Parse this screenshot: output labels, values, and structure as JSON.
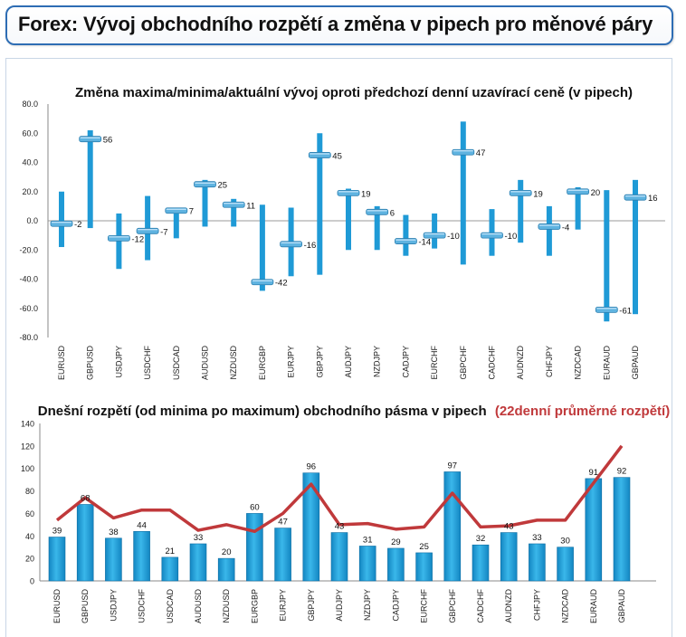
{
  "page_title": "Forex: Vývoj obchodního rozpětí a změna v pipech pro měnové páry",
  "chart_data": [
    {
      "type": "bar",
      "title": "Změna maxima/minima/aktuální vývoj oproti předchozí denní uzavírací ceně (v pipech)",
      "categories": [
        "EURUSD",
        "GBPUSD",
        "USDJPY",
        "USDCHF",
        "USDCAD",
        "AUDUSD",
        "NZDUSD",
        "EURGBP",
        "EURJPY",
        "GBPJPY",
        "AUDJPY",
        "NZDJPY",
        "CADJPY",
        "EURCHF",
        "GBPCHF",
        "CADCHF",
        "AUDNZD",
        "CHFJPY",
        "NZDCAD",
        "EURAUD",
        "GBPAUD"
      ],
      "series": [
        {
          "name": "max",
          "values": [
            20,
            62,
            5,
            17,
            8,
            28,
            15,
            11,
            9,
            60,
            22,
            10,
            4,
            5,
            68,
            8,
            28,
            10,
            23,
            21,
            28
          ]
        },
        {
          "name": "min",
          "values": [
            -18,
            -5,
            -33,
            -27,
            -12,
            -4,
            -4,
            -48,
            -38,
            -37,
            -20,
            -20,
            -24,
            -19,
            -30,
            -24,
            -15,
            -24,
            -6,
            -69,
            -64
          ]
        },
        {
          "name": "aktuální",
          "values": [
            -2,
            56,
            -12,
            -7,
            7,
            25,
            11,
            -42,
            -16,
            45,
            19,
            6,
            -14,
            -10,
            47,
            -10,
            19,
            -4,
            20,
            -61,
            16
          ]
        }
      ],
      "ylim": [
        -80,
        80
      ],
      "yticks": [
        "80.0",
        "60.0",
        "40.0",
        "20.0",
        "0.0",
        "-20.0",
        "-40.0",
        "-60.0",
        "-80.0"
      ],
      "data_labels": [
        "-2",
        "56",
        "-12",
        "-7",
        "7",
        "25",
        "11",
        "-42",
        "-16",
        "45",
        "19",
        "6",
        "-14",
        "-10",
        "47",
        "-10",
        "19",
        "-4",
        "20",
        "-61",
        "16"
      ],
      "colors": {
        "bar": "#1f9ad6",
        "marker": "#5fb3e0"
      }
    },
    {
      "type": "bar",
      "title": "Dnešní rozpětí (od minima po maximum) obchodního pásma v pipech",
      "title_secondary": "(22denní průměrné rozpětí)",
      "categories": [
        "EURUSD",
        "GBPUSD",
        "USDJPY",
        "USDCHF",
        "USDCAD",
        "AUDUSD",
        "NZDUSD",
        "EURGBP",
        "EURJPY",
        "GBPJPY",
        "AUDJPY",
        "NZDJPY",
        "CADJPY",
        "EURCHF",
        "GBPCHF",
        "CADCHF",
        "AUDNZD",
        "CHFJPY",
        "NZDCAD",
        "EURAUD",
        "GBPAUD"
      ],
      "series": [
        {
          "name": "Dnešní rozpětí",
          "values": [
            39,
            68,
            38,
            44,
            21,
            33,
            20,
            60,
            47,
            96,
            43,
            31,
            29,
            25,
            97,
            32,
            43,
            33,
            30,
            91,
            92
          ]
        },
        {
          "name": "22denní průměrné rozpětí",
          "values": [
            54,
            74,
            56,
            63,
            63,
            45,
            50,
            44,
            60,
            86,
            50,
            51,
            46,
            48,
            78,
            48,
            49,
            54,
            54,
            87,
            120
          ]
        }
      ],
      "ylim": [
        0,
        140
      ],
      "yticks": [
        "0",
        "20",
        "40",
        "60",
        "80",
        "100",
        "120",
        "140"
      ],
      "data_labels": [
        "39",
        "68",
        "38",
        "44",
        "21",
        "33",
        "20",
        "60",
        "47",
        "96",
        "43",
        "31",
        "29",
        "25",
        "97",
        "32",
        "43",
        "33",
        "30",
        "91",
        "92"
      ],
      "colors": {
        "bar": "#1a9fd8",
        "line": "#c0393b",
        "title_secondary": "#c0393b"
      }
    }
  ]
}
